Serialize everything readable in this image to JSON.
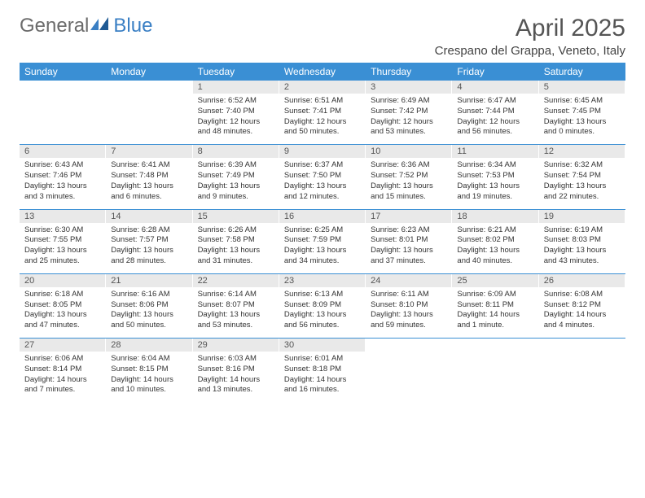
{
  "logo": {
    "text1": "General",
    "text2": "Blue"
  },
  "title": "April 2025",
  "location": "Crespano del Grappa, Veneto, Italy",
  "colors": {
    "header_bg": "#3a8fd4",
    "header_text": "#ffffff",
    "daynum_bg": "#e9e9e9",
    "sep": "#3a8fd4",
    "logo_gray": "#6b6b6b",
    "logo_blue": "#3a7fc4"
  },
  "day_names": [
    "Sunday",
    "Monday",
    "Tuesday",
    "Wednesday",
    "Thursday",
    "Friday",
    "Saturday"
  ],
  "weeks": [
    [
      null,
      null,
      {
        "n": "1",
        "sr": "6:52 AM",
        "ss": "7:40 PM",
        "dl": "12 hours and 48 minutes."
      },
      {
        "n": "2",
        "sr": "6:51 AM",
        "ss": "7:41 PM",
        "dl": "12 hours and 50 minutes."
      },
      {
        "n": "3",
        "sr": "6:49 AM",
        "ss": "7:42 PM",
        "dl": "12 hours and 53 minutes."
      },
      {
        "n": "4",
        "sr": "6:47 AM",
        "ss": "7:44 PM",
        "dl": "12 hours and 56 minutes."
      },
      {
        "n": "5",
        "sr": "6:45 AM",
        "ss": "7:45 PM",
        "dl": "13 hours and 0 minutes."
      }
    ],
    [
      {
        "n": "6",
        "sr": "6:43 AM",
        "ss": "7:46 PM",
        "dl": "13 hours and 3 minutes."
      },
      {
        "n": "7",
        "sr": "6:41 AM",
        "ss": "7:48 PM",
        "dl": "13 hours and 6 minutes."
      },
      {
        "n": "8",
        "sr": "6:39 AM",
        "ss": "7:49 PM",
        "dl": "13 hours and 9 minutes."
      },
      {
        "n": "9",
        "sr": "6:37 AM",
        "ss": "7:50 PM",
        "dl": "13 hours and 12 minutes."
      },
      {
        "n": "10",
        "sr": "6:36 AM",
        "ss": "7:52 PM",
        "dl": "13 hours and 15 minutes."
      },
      {
        "n": "11",
        "sr": "6:34 AM",
        "ss": "7:53 PM",
        "dl": "13 hours and 19 minutes."
      },
      {
        "n": "12",
        "sr": "6:32 AM",
        "ss": "7:54 PM",
        "dl": "13 hours and 22 minutes."
      }
    ],
    [
      {
        "n": "13",
        "sr": "6:30 AM",
        "ss": "7:55 PM",
        "dl": "13 hours and 25 minutes."
      },
      {
        "n": "14",
        "sr": "6:28 AM",
        "ss": "7:57 PM",
        "dl": "13 hours and 28 minutes."
      },
      {
        "n": "15",
        "sr": "6:26 AM",
        "ss": "7:58 PM",
        "dl": "13 hours and 31 minutes."
      },
      {
        "n": "16",
        "sr": "6:25 AM",
        "ss": "7:59 PM",
        "dl": "13 hours and 34 minutes."
      },
      {
        "n": "17",
        "sr": "6:23 AM",
        "ss": "8:01 PM",
        "dl": "13 hours and 37 minutes."
      },
      {
        "n": "18",
        "sr": "6:21 AM",
        "ss": "8:02 PM",
        "dl": "13 hours and 40 minutes."
      },
      {
        "n": "19",
        "sr": "6:19 AM",
        "ss": "8:03 PM",
        "dl": "13 hours and 43 minutes."
      }
    ],
    [
      {
        "n": "20",
        "sr": "6:18 AM",
        "ss": "8:05 PM",
        "dl": "13 hours and 47 minutes."
      },
      {
        "n": "21",
        "sr": "6:16 AM",
        "ss": "8:06 PM",
        "dl": "13 hours and 50 minutes."
      },
      {
        "n": "22",
        "sr": "6:14 AM",
        "ss": "8:07 PM",
        "dl": "13 hours and 53 minutes."
      },
      {
        "n": "23",
        "sr": "6:13 AM",
        "ss": "8:09 PM",
        "dl": "13 hours and 56 minutes."
      },
      {
        "n": "24",
        "sr": "6:11 AM",
        "ss": "8:10 PM",
        "dl": "13 hours and 59 minutes."
      },
      {
        "n": "25",
        "sr": "6:09 AM",
        "ss": "8:11 PM",
        "dl": "14 hours and 1 minute."
      },
      {
        "n": "26",
        "sr": "6:08 AM",
        "ss": "8:12 PM",
        "dl": "14 hours and 4 minutes."
      }
    ],
    [
      {
        "n": "27",
        "sr": "6:06 AM",
        "ss": "8:14 PM",
        "dl": "14 hours and 7 minutes."
      },
      {
        "n": "28",
        "sr": "6:04 AM",
        "ss": "8:15 PM",
        "dl": "14 hours and 10 minutes."
      },
      {
        "n": "29",
        "sr": "6:03 AM",
        "ss": "8:16 PM",
        "dl": "14 hours and 13 minutes."
      },
      {
        "n": "30",
        "sr": "6:01 AM",
        "ss": "8:18 PM",
        "dl": "14 hours and 16 minutes."
      },
      null,
      null,
      null
    ]
  ],
  "labels": {
    "sunrise": "Sunrise:",
    "sunset": "Sunset:",
    "daylight": "Daylight:"
  }
}
